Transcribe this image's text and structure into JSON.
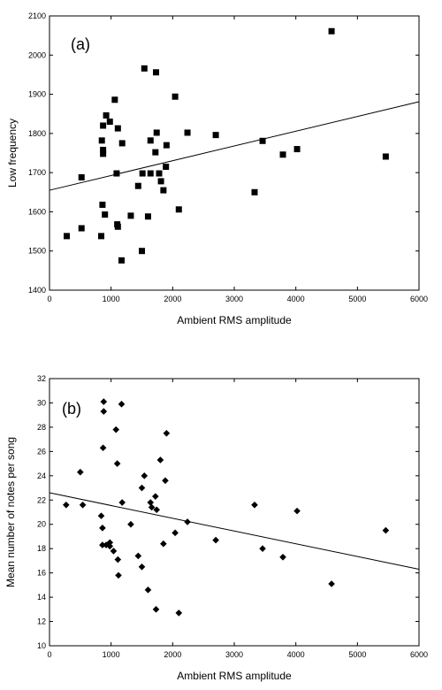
{
  "chart_data": [
    {
      "type": "scatter",
      "panel_label": "(a)",
      "xlabel": "Ambient RMS amplitude",
      "ylabel": "Low frequency",
      "xlim": [
        0,
        6000
      ],
      "ylim": [
        1400,
        2100
      ],
      "xticks": [
        0,
        1000,
        2000,
        3000,
        4000,
        5000,
        6000
      ],
      "yticks": [
        1400,
        1500,
        1600,
        1700,
        1800,
        1900,
        2000,
        2100
      ],
      "marker": "square",
      "grid": false,
      "trendline": {
        "x": [
          0,
          6000
        ],
        "y": [
          1655,
          1881
        ]
      },
      "points": [
        {
          "x": 280,
          "y": 1538
        },
        {
          "x": 520,
          "y": 1558
        },
        {
          "x": 520,
          "y": 1688
        },
        {
          "x": 840,
          "y": 1538
        },
        {
          "x": 860,
          "y": 1618
        },
        {
          "x": 870,
          "y": 1748
        },
        {
          "x": 870,
          "y": 1758
        },
        {
          "x": 850,
          "y": 1782
        },
        {
          "x": 870,
          "y": 1820
        },
        {
          "x": 900,
          "y": 1593
        },
        {
          "x": 920,
          "y": 1846
        },
        {
          "x": 980,
          "y": 1830
        },
        {
          "x": 1060,
          "y": 1886
        },
        {
          "x": 1090,
          "y": 1698
        },
        {
          "x": 1100,
          "y": 1568
        },
        {
          "x": 1110,
          "y": 1562
        },
        {
          "x": 1110,
          "y": 1813
        },
        {
          "x": 1170,
          "y": 1476
        },
        {
          "x": 1180,
          "y": 1775
        },
        {
          "x": 1320,
          "y": 1590
        },
        {
          "x": 1440,
          "y": 1666
        },
        {
          "x": 1500,
          "y": 1500
        },
        {
          "x": 1510,
          "y": 1698
        },
        {
          "x": 1540,
          "y": 1966
        },
        {
          "x": 1600,
          "y": 1588
        },
        {
          "x": 1640,
          "y": 1698
        },
        {
          "x": 1640,
          "y": 1782
        },
        {
          "x": 1720,
          "y": 1752
        },
        {
          "x": 1730,
          "y": 1956
        },
        {
          "x": 1740,
          "y": 1802
        },
        {
          "x": 1780,
          "y": 1698
        },
        {
          "x": 1810,
          "y": 1678
        },
        {
          "x": 1850,
          "y": 1655
        },
        {
          "x": 1890,
          "y": 1715
        },
        {
          "x": 1900,
          "y": 1770
        },
        {
          "x": 2040,
          "y": 1894
        },
        {
          "x": 2100,
          "y": 1606
        },
        {
          "x": 2240,
          "y": 1802
        },
        {
          "x": 2700,
          "y": 1796
        },
        {
          "x": 3330,
          "y": 1650
        },
        {
          "x": 3460,
          "y": 1781
        },
        {
          "x": 3790,
          "y": 1746
        },
        {
          "x": 4020,
          "y": 1760
        },
        {
          "x": 4580,
          "y": 2061
        },
        {
          "x": 5460,
          "y": 1741
        }
      ]
    },
    {
      "type": "scatter",
      "panel_label": "(b)",
      "xlabel": "Ambient RMS amplitude",
      "ylabel": "Mean number of notes per song",
      "xlim": [
        0,
        6000
      ],
      "ylim": [
        10,
        32
      ],
      "xticks": [
        0,
        1000,
        2000,
        3000,
        4000,
        5000,
        6000
      ],
      "yticks": [
        10,
        12,
        14,
        16,
        18,
        20,
        22,
        24,
        26,
        28,
        30,
        32
      ],
      "marker": "diamond",
      "grid": false,
      "trendline": {
        "x": [
          0,
          6000
        ],
        "y": [
          22.6,
          16.3
        ]
      },
      "points": [
        {
          "x": 270,
          "y": 21.6
        },
        {
          "x": 500,
          "y": 24.3
        },
        {
          "x": 540,
          "y": 21.6
        },
        {
          "x": 840,
          "y": 20.7
        },
        {
          "x": 860,
          "y": 18.3
        },
        {
          "x": 870,
          "y": 26.3
        },
        {
          "x": 860,
          "y": 19.7
        },
        {
          "x": 880,
          "y": 30.1
        },
        {
          "x": 880,
          "y": 29.3
        },
        {
          "x": 920,
          "y": 18.3
        },
        {
          "x": 980,
          "y": 18.5
        },
        {
          "x": 980,
          "y": 18.2
        },
        {
          "x": 1040,
          "y": 17.8
        },
        {
          "x": 1080,
          "y": 27.8
        },
        {
          "x": 1100,
          "y": 25.0
        },
        {
          "x": 1110,
          "y": 17.1
        },
        {
          "x": 1120,
          "y": 15.8
        },
        {
          "x": 1170,
          "y": 29.9
        },
        {
          "x": 1180,
          "y": 21.8
        },
        {
          "x": 1320,
          "y": 20.0
        },
        {
          "x": 1440,
          "y": 17.4
        },
        {
          "x": 1500,
          "y": 16.5
        },
        {
          "x": 1500,
          "y": 23.0
        },
        {
          "x": 1540,
          "y": 24.0
        },
        {
          "x": 1600,
          "y": 14.6
        },
        {
          "x": 1640,
          "y": 21.8
        },
        {
          "x": 1660,
          "y": 21.4
        },
        {
          "x": 1720,
          "y": 22.3
        },
        {
          "x": 1730,
          "y": 13.0
        },
        {
          "x": 1740,
          "y": 21.2
        },
        {
          "x": 1800,
          "y": 25.3
        },
        {
          "x": 1850,
          "y": 18.4
        },
        {
          "x": 1880,
          "y": 23.6
        },
        {
          "x": 1900,
          "y": 27.5
        },
        {
          "x": 2040,
          "y": 19.3
        },
        {
          "x": 2100,
          "y": 12.7
        },
        {
          "x": 2240,
          "y": 20.2
        },
        {
          "x": 2700,
          "y": 18.7
        },
        {
          "x": 3330,
          "y": 21.6
        },
        {
          "x": 3460,
          "y": 18.0
        },
        {
          "x": 3790,
          "y": 17.3
        },
        {
          "x": 4020,
          "y": 21.1
        },
        {
          "x": 4580,
          "y": 15.1
        },
        {
          "x": 5460,
          "y": 19.5
        }
      ]
    }
  ]
}
